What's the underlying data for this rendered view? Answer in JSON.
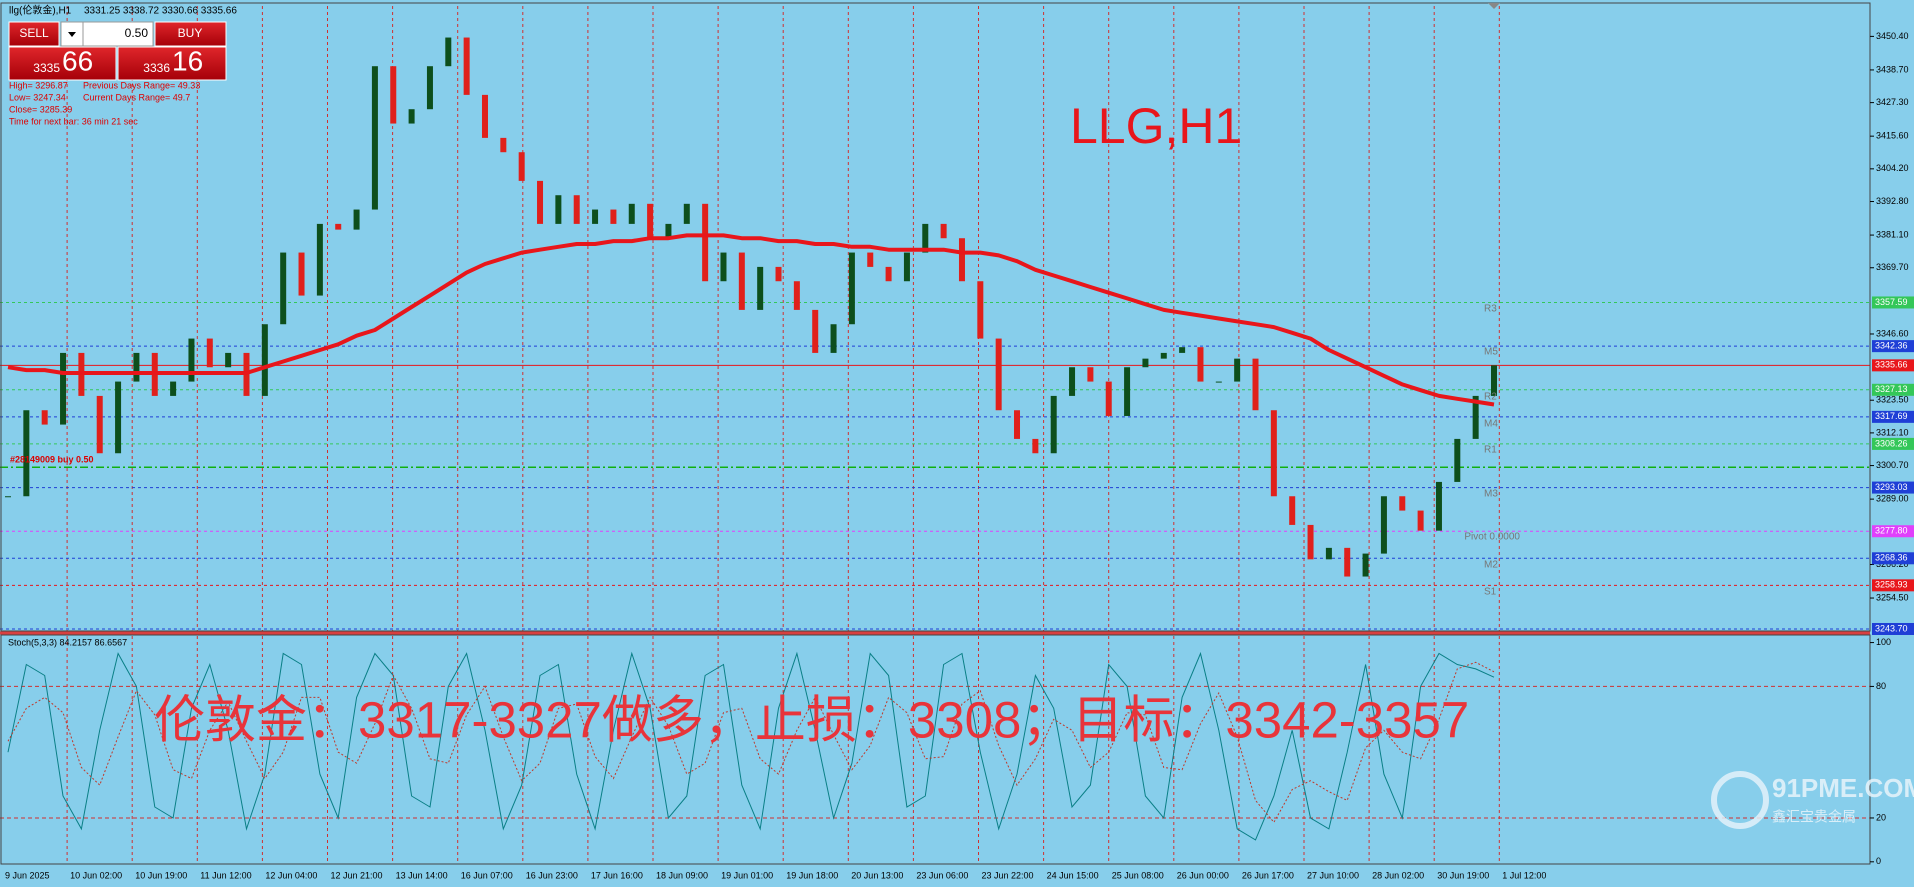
{
  "header": {
    "title": "llg(伦敦金),H1",
    "ohlc": "3331.25 3338.72 3330.66 3335.66"
  },
  "trade_panel": {
    "sell": "SELL",
    "buy": "BUY",
    "lot": "0.50",
    "sell_price": "3335",
    "sell_pips": "66",
    "buy_price": "3336",
    "buy_pips": "16"
  },
  "info": [
    "High= 3296.87",
    "Previous Days Range= 49.33",
    "Low= 3247.34",
    "Current Days Range= 49.7",
    "Close= 3285.39",
    "Time for next bar: 36 min 21 sec"
  ],
  "watermark": "伦敦金：3317-3327做多，止损：3308；目标：3342-3357",
  "logo": {
    "title": "91PME.COM",
    "subtitle": "鑫汇宝贵金属"
  },
  "chart_data": [
    {
      "type": "candlestick",
      "title": "LLG,H1",
      "x_labels": [
        "9 Jun 2025",
        "10 Jun 02:00",
        "10 Jun 19:00",
        "11 Jun 12:00",
        "12 Jun 04:00",
        "12 Jun 21:00",
        "13 Jun 14:00",
        "16 Jun 07:00",
        "16 Jun 23:00",
        "17 Jun 16:00",
        "18 Jun 09:00",
        "19 Jun 01:00",
        "19 Jun 18:00",
        "20 Jun 13:00",
        "23 Jun 06:00",
        "23 Jun 22:00",
        "24 Jun 15:00",
        "25 Jun 08:00",
        "26 Jun 00:00",
        "26 Jun 17:00",
        "27 Jun 10:00",
        "28 Jun 02:00",
        "30 Jun 19:00",
        "1 Jul 12:00"
      ],
      "values": [
        3290,
        3320,
        3315,
        3340,
        3325,
        3305,
        3330,
        3340,
        3325,
        3330,
        3345,
        3335,
        3340,
        3325,
        3350,
        3375,
        3360,
        3385,
        3383,
        3390,
        3440,
        3420,
        3425,
        3440,
        3450,
        3430,
        3415,
        3410,
        3400,
        3385,
        3395,
        3385,
        3390,
        3385,
        3392,
        3380,
        3385,
        3392,
        3365,
        3375,
        3355,
        3370,
        3365,
        3355,
        3340,
        3350,
        3375,
        3370,
        3365,
        3375,
        3385,
        3380,
        3365,
        3345,
        3320,
        3310,
        3305,
        3325,
        3335,
        3330,
        3318,
        3335,
        3338,
        3340,
        3342,
        3330,
        3330,
        3338,
        3320,
        3290,
        3280,
        3268,
        3272,
        3262,
        3270,
        3290,
        3285,
        3278,
        3295,
        3310,
        3325,
        3335.66
      ],
      "up_color": "#0d4f1c",
      "down_color": "#e0201b",
      "ma": {
        "color": "#e8161b",
        "values": [
          3335,
          3334,
          3334,
          3333,
          3333,
          3333,
          3333,
          3333,
          3333,
          3333,
          3333,
          3333,
          3333,
          3333,
          3335,
          3337,
          3339,
          3341,
          3343,
          3346,
          3348,
          3352,
          3356,
          3360,
          3364,
          3368,
          3371,
          3373,
          3375,
          3376,
          3377,
          3378,
          3378,
          3379,
          3379,
          3380,
          3380,
          3381,
          3381,
          3381,
          3380,
          3380,
          3379,
          3379,
          3378,
          3378,
          3377,
          3377,
          3376,
          3376,
          3376,
          3376,
          3375,
          3375,
          3374,
          3372,
          3369,
          3367,
          3365,
          3363,
          3361,
          3359,
          3357,
          3355,
          3354,
          3353,
          3352,
          3351,
          3350,
          3349,
          3347,
          3345,
          3341,
          3338,
          3335,
          3332,
          3329,
          3327,
          3325,
          3324,
          3323,
          3322
        ]
      },
      "levels": [
        {
          "value": 3357.59,
          "color": "#34c759",
          "dashed": true
        },
        {
          "value": 3342.36,
          "color": "#1f3fd6",
          "dashed": true
        },
        {
          "value": 3335.66,
          "color": "#e8161b",
          "dashed": false
        },
        {
          "value": 3327.13,
          "color": "#34c759",
          "dashed": true
        },
        {
          "value": 3317.69,
          "color": "#1f3fd6",
          "dashed": true
        },
        {
          "value": 3308.26,
          "color": "#34c759",
          "dashed": true
        },
        {
          "value": 3293.03,
          "color": "#1f3fd6",
          "dashed": true
        },
        {
          "value": 3277.8,
          "label": "3277.80",
          "color": "#e040fb",
          "dashed": true
        },
        {
          "value": 3268.36,
          "color": "#1f3fd6",
          "dashed": true
        },
        {
          "value": 3258.93,
          "color": "#e8161b",
          "dashed": true
        },
        {
          "value": 3243.7,
          "label": "3243.70",
          "color": "#1f3fd6",
          "dashed": true
        }
      ],
      "order": {
        "label": "#28149009 buy 0.50",
        "value": 3300.1,
        "color": "#10b010"
      },
      "pivot_labels": [
        "R3",
        "M5",
        "R2",
        "M4",
        "R1",
        "M3",
        "Pivot 0.0000",
        "M2",
        "S1"
      ],
      "ylim": [
        3243,
        3461
      ],
      "yticks": [
        {
          "value": 3450.4,
          "label": "3450.40"
        },
        {
          "value": 3438.7,
          "label": "3438.70"
        },
        {
          "value": 3427.3,
          "label": "3427.30"
        },
        {
          "value": 3415.6,
          "label": "3415.60"
        },
        {
          "value": 3404.2,
          "label": "3404.20"
        },
        {
          "value": 3392.8,
          "label": "3392.80"
        },
        {
          "value": 3381.1,
          "label": "3381.10"
        },
        {
          "value": 3369.7,
          "label": "3369.70"
        },
        {
          "value": 3346.6,
          "label": "3346.60"
        },
        {
          "value": 3323.5,
          "label": "3323.50"
        },
        {
          "value": 3312.1,
          "label": "3312.10"
        },
        {
          "value": 3300.7,
          "label": "3300.70"
        },
        {
          "value": 3289,
          "label": "3289.00"
        },
        {
          "value": 3266.2,
          "label": "3266.20"
        },
        {
          "value": 3254.5,
          "label": "3254.50"
        }
      ],
      "grid": true
    },
    {
      "type": "line",
      "title": "Stoch(5,3,3) 84.2157 86.6567",
      "series": [
        {
          "color": "#0a7f86",
          "dashed": false,
          "values": [
            50,
            90,
            85,
            30,
            15,
            60,
            95,
            80,
            25,
            20,
            70,
            90,
            60,
            15,
            40,
            95,
            90,
            40,
            20,
            75,
            95,
            85,
            30,
            25,
            80,
            95,
            60,
            15,
            35,
            85,
            90,
            40,
            15,
            60,
            95,
            70,
            20,
            30,
            85,
            90,
            35,
            15,
            70,
            95,
            60,
            20,
            45,
            95,
            85,
            25,
            30,
            90,
            95,
            50,
            15,
            40,
            85,
            70,
            25,
            35,
            90,
            80,
            30,
            20,
            75,
            95,
            60,
            15,
            10,
            30,
            60,
            20,
            15,
            50,
            90,
            40,
            20,
            80,
            95,
            90,
            88,
            84.2157
          ]
        },
        {
          "color": "#c0392b",
          "dashed": true,
          "values": [
            55,
            70,
            75,
            68,
            43,
            35,
            57,
            78,
            67,
            42,
            38,
            60,
            73,
            55,
            38,
            50,
            75,
            75,
            50,
            45,
            63,
            85,
            70,
            47,
            45,
            67,
            80,
            57,
            37,
            45,
            70,
            72,
            48,
            38,
            57,
            75,
            62,
            40,
            45,
            68,
            70,
            47,
            40,
            60,
            75,
            58,
            42,
            53,
            75,
            68,
            47,
            48,
            72,
            78,
            53,
            35,
            47,
            65,
            60,
            43,
            50,
            68,
            67,
            43,
            42,
            63,
            77,
            57,
            28,
            18,
            33,
            37,
            32,
            28,
            52,
            60,
            50,
            47,
            65,
            88,
            91,
            86.6567
          ]
        }
      ],
      "levels": [
        80,
        20
      ],
      "ylim": [
        -1,
        103
      ],
      "yticks": [
        100,
        80,
        20,
        0
      ]
    }
  ]
}
